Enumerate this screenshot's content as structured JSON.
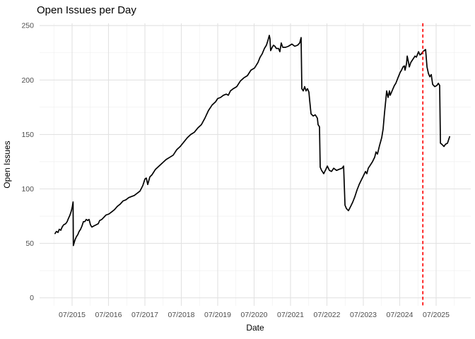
{
  "title": "Open Issues per Day",
  "x_axis": {
    "label": "Date",
    "ticks": [
      "07/2015",
      "07/2016",
      "07/2017",
      "07/2018",
      "07/2019",
      "07/2020",
      "07/2021",
      "07/2022",
      "07/2023",
      "07/2024",
      "07/2025"
    ]
  },
  "y_axis": {
    "label": "Open Issues",
    "ticks": [
      0,
      50,
      100,
      150,
      200,
      250
    ]
  },
  "chart_data": {
    "type": "line",
    "title": "Open Issues per Day",
    "xlabel": "Date",
    "ylabel": "Open Issues",
    "ylim": [
      0,
      250
    ],
    "xlim_years": [
      2015.0,
      2026.1
    ],
    "grid": "major+minor",
    "legend": "none",
    "colors": {
      "series": "#000000",
      "vline": "#ff0000",
      "grid_major": "#e2e2e2",
      "grid_minor": "#eeeeee",
      "tick_text": "#4d4d4d"
    },
    "vline": {
      "date": "2025-02-20",
      "color": "#ff0000",
      "style": "dashed"
    },
    "series": [
      {
        "name": "Open Issues",
        "color": "#000000",
        "points": [
          [
            "2015-01-13",
            59
          ],
          [
            "2015-01-27",
            61
          ],
          [
            "2015-02-11",
            60
          ],
          [
            "2015-02-25",
            63
          ],
          [
            "2015-03-09",
            62
          ],
          [
            "2015-03-23",
            65
          ],
          [
            "2015-04-07",
            67
          ],
          [
            "2015-04-28",
            68
          ],
          [
            "2015-05-12",
            70
          ],
          [
            "2015-05-26",
            73
          ],
          [
            "2015-06-10",
            76
          ],
          [
            "2015-06-24",
            80
          ],
          [
            "2015-07-04",
            84
          ],
          [
            "2015-07-11",
            88
          ],
          [
            "2015-07-14",
            48
          ],
          [
            "2015-07-29",
            53
          ],
          [
            "2015-08-13",
            56
          ],
          [
            "2015-08-27",
            58
          ],
          [
            "2015-09-11",
            61
          ],
          [
            "2015-09-25",
            63
          ],
          [
            "2015-10-09",
            66
          ],
          [
            "2015-10-23",
            70
          ],
          [
            "2015-11-07",
            70
          ],
          [
            "2015-11-21",
            72
          ],
          [
            "2015-12-05",
            71
          ],
          [
            "2015-12-19",
            72
          ],
          [
            "2016-01-03",
            67
          ],
          [
            "2016-01-17",
            65
          ],
          [
            "2016-02-07",
            66
          ],
          [
            "2016-02-28",
            67
          ],
          [
            "2016-03-20",
            68
          ],
          [
            "2016-04-04",
            71
          ],
          [
            "2016-04-25",
            72
          ],
          [
            "2016-05-16",
            74
          ],
          [
            "2016-06-06",
            76
          ],
          [
            "2016-07-05",
            77
          ],
          [
            "2016-08-03",
            79
          ],
          [
            "2016-08-31",
            81
          ],
          [
            "2016-09-29",
            84
          ],
          [
            "2016-10-27",
            86
          ],
          [
            "2016-11-25",
            89
          ],
          [
            "2016-12-23",
            90
          ],
          [
            "2017-01-21",
            92
          ],
          [
            "2017-02-18",
            93
          ],
          [
            "2017-03-16",
            94
          ],
          [
            "2017-04-14",
            96
          ],
          [
            "2017-05-12",
            98
          ],
          [
            "2017-06-10",
            103
          ],
          [
            "2017-07-01",
            109
          ],
          [
            "2017-07-15",
            110
          ],
          [
            "2017-07-29",
            104
          ],
          [
            "2017-08-20",
            111
          ],
          [
            "2017-09-11",
            113
          ],
          [
            "2017-10-16",
            118
          ],
          [
            "2017-11-21",
            121
          ],
          [
            "2017-12-26",
            124
          ],
          [
            "2018-02-01",
            127
          ],
          [
            "2018-03-06",
            129
          ],
          [
            "2018-04-11",
            131
          ],
          [
            "2018-05-16",
            136
          ],
          [
            "2018-06-21",
            139
          ],
          [
            "2018-07-26",
            143
          ],
          [
            "2018-08-31",
            147
          ],
          [
            "2018-10-05",
            150
          ],
          [
            "2018-11-10",
            152
          ],
          [
            "2018-12-15",
            156
          ],
          [
            "2019-01-20",
            159
          ],
          [
            "2019-02-25",
            165
          ],
          [
            "2019-03-30",
            172
          ],
          [
            "2019-05-05",
            177
          ],
          [
            "2019-06-10",
            180
          ],
          [
            "2019-07-01",
            183
          ],
          [
            "2019-07-29",
            184
          ],
          [
            "2019-08-27",
            186
          ],
          [
            "2019-09-25",
            187
          ],
          [
            "2019-10-16",
            186
          ],
          [
            "2019-11-07",
            190
          ],
          [
            "2019-12-05",
            192
          ],
          [
            "2020-01-10",
            194
          ],
          [
            "2020-02-15",
            199
          ],
          [
            "2020-03-20",
            202
          ],
          [
            "2020-04-25",
            204
          ],
          [
            "2020-05-30",
            209
          ],
          [
            "2020-07-05",
            211
          ],
          [
            "2020-08-09",
            216
          ],
          [
            "2020-08-31",
            221
          ],
          [
            "2020-09-21",
            224
          ],
          [
            "2020-10-13",
            229
          ],
          [
            "2020-11-03",
            232
          ],
          [
            "2020-11-17",
            236
          ],
          [
            "2020-12-01",
            241
          ],
          [
            "2020-12-08",
            238
          ],
          [
            "2020-12-15",
            227
          ],
          [
            "2020-12-30",
            230
          ],
          [
            "2021-01-13",
            232
          ],
          [
            "2021-01-27",
            231
          ],
          [
            "2021-02-11",
            229
          ],
          [
            "2021-03-02",
            229
          ],
          [
            "2021-03-16",
            226
          ],
          [
            "2021-03-30",
            234
          ],
          [
            "2021-04-14",
            230
          ],
          [
            "2021-05-12",
            230
          ],
          [
            "2021-06-10",
            231
          ],
          [
            "2021-07-15",
            233
          ],
          [
            "2021-08-13",
            231
          ],
          [
            "2021-09-11",
            232
          ],
          [
            "2021-10-02",
            234
          ],
          [
            "2021-10-16",
            239
          ],
          [
            "2021-10-23",
            192
          ],
          [
            "2021-11-07",
            190
          ],
          [
            "2021-11-21",
            194
          ],
          [
            "2021-12-05",
            190
          ],
          [
            "2021-12-19",
            192
          ],
          [
            "2022-01-03",
            189
          ],
          [
            "2022-01-10",
            182
          ],
          [
            "2022-01-24",
            169
          ],
          [
            "2022-02-15",
            167
          ],
          [
            "2022-03-06",
            168
          ],
          [
            "2022-03-27",
            165
          ],
          [
            "2022-04-04",
            159
          ],
          [
            "2022-04-18",
            157
          ],
          [
            "2022-04-25",
            120
          ],
          [
            "2022-05-09",
            117
          ],
          [
            "2022-05-30",
            114
          ],
          [
            "2022-06-21",
            118
          ],
          [
            "2022-07-05",
            121
          ],
          [
            "2022-07-26",
            117
          ],
          [
            "2022-08-17",
            116
          ],
          [
            "2022-09-08",
            119
          ],
          [
            "2022-10-06",
            117
          ],
          [
            "2022-11-03",
            118
          ],
          [
            "2022-12-01",
            119
          ],
          [
            "2022-12-16",
            121
          ],
          [
            "2022-12-30",
            85
          ],
          [
            "2023-01-14",
            82
          ],
          [
            "2023-02-04",
            80
          ],
          [
            "2023-02-26",
            84
          ],
          [
            "2023-03-17",
            88
          ],
          [
            "2023-04-08",
            93
          ],
          [
            "2023-04-29",
            99
          ],
          [
            "2023-05-20",
            104
          ],
          [
            "2023-06-10",
            108
          ],
          [
            "2023-07-02",
            112
          ],
          [
            "2023-07-23",
            116
          ],
          [
            "2023-08-06",
            114
          ],
          [
            "2023-08-20",
            119
          ],
          [
            "2023-09-11",
            122
          ],
          [
            "2023-10-02",
            125
          ],
          [
            "2023-10-23",
            129
          ],
          [
            "2023-11-07",
            134
          ],
          [
            "2023-11-21",
            132
          ],
          [
            "2023-12-12",
            140
          ],
          [
            "2024-01-03",
            147
          ],
          [
            "2024-01-17",
            155
          ],
          [
            "2024-02-01",
            170
          ],
          [
            "2024-02-15",
            183
          ],
          [
            "2024-02-22",
            190
          ],
          [
            "2024-03-06",
            184
          ],
          [
            "2024-03-20",
            190
          ],
          [
            "2024-03-27",
            186
          ],
          [
            "2024-04-11",
            189
          ],
          [
            "2024-04-25",
            192
          ],
          [
            "2024-05-09",
            195
          ],
          [
            "2024-05-23",
            197
          ],
          [
            "2024-06-14",
            202
          ],
          [
            "2024-07-05",
            207
          ],
          [
            "2024-07-19",
            209
          ],
          [
            "2024-08-03",
            212
          ],
          [
            "2024-08-17",
            213
          ],
          [
            "2024-08-24",
            209
          ],
          [
            "2024-09-08",
            215
          ],
          [
            "2024-09-15",
            222
          ],
          [
            "2024-09-29",
            216
          ],
          [
            "2024-10-06",
            212
          ],
          [
            "2024-10-20",
            216
          ],
          [
            "2024-11-04",
            218
          ],
          [
            "2024-11-18",
            220
          ],
          [
            "2024-12-02",
            222
          ],
          [
            "2024-12-16",
            221
          ],
          [
            "2025-01-07",
            226
          ],
          [
            "2025-01-21",
            223
          ],
          [
            "2025-02-05",
            224
          ],
          [
            "2025-02-19",
            226
          ],
          [
            "2025-03-03",
            227
          ],
          [
            "2025-03-17",
            228
          ],
          [
            "2025-04-01",
            212
          ],
          [
            "2025-04-15",
            206
          ],
          [
            "2025-04-29",
            203
          ],
          [
            "2025-05-13",
            205
          ],
          [
            "2025-05-27",
            196
          ],
          [
            "2025-06-18",
            194
          ],
          [
            "2025-07-09",
            195
          ],
          [
            "2025-07-23",
            197
          ],
          [
            "2025-08-06",
            195
          ],
          [
            "2025-08-14",
            142
          ],
          [
            "2025-08-28",
            141
          ],
          [
            "2025-09-19",
            139
          ],
          [
            "2025-10-03",
            141
          ],
          [
            "2025-10-24",
            142
          ],
          [
            "2025-11-15",
            148
          ]
        ]
      }
    ]
  }
}
